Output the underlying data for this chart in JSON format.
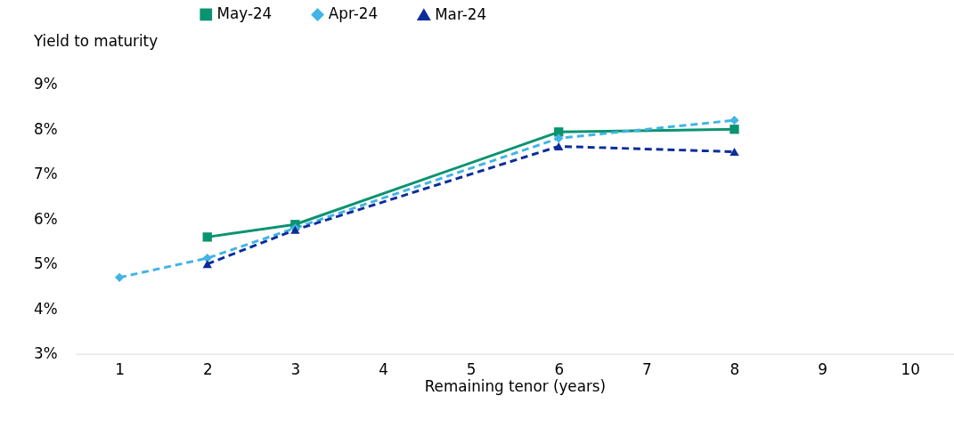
{
  "chart_data": {
    "type": "line",
    "xlabel": "Remaining tenor (years)",
    "ylabel": "Yield to maturity",
    "xlim": [
      0.5,
      10.5
    ],
    "xticks": [
      1,
      2,
      3,
      4,
      5,
      6,
      7,
      8,
      9,
      10
    ],
    "ylim": [
      3,
      9
    ],
    "yticks": [
      {
        "value": 3,
        "label": "3%"
      },
      {
        "value": 4,
        "label": "4%"
      },
      {
        "value": 5,
        "label": "5%"
      },
      {
        "value": 6,
        "label": "6%"
      },
      {
        "value": 7,
        "label": "7%"
      },
      {
        "value": 8,
        "label": "8%"
      },
      {
        "value": 9,
        "label": "9%"
      }
    ],
    "legend": "top",
    "grid": false,
    "series": [
      {
        "name": "May-24",
        "color": "#0a9370",
        "marker": "square",
        "line_style": "solid",
        "x": [
          2,
          3,
          6,
          8
        ],
        "values": [
          5.6,
          5.88,
          7.94,
          8.0
        ]
      },
      {
        "name": "Apr-24",
        "color": "#42b4e6",
        "marker": "diamond",
        "line_style": "dashed",
        "x": [
          1,
          2,
          3,
          6,
          8
        ],
        "values": [
          4.7,
          5.13,
          5.8,
          7.8,
          8.2
        ]
      },
      {
        "name": "Mar-24",
        "color": "#0b2d9a",
        "marker": "triangle",
        "line_style": "dashed",
        "x": [
          2,
          3,
          6,
          8
        ],
        "values": [
          5.0,
          5.76,
          7.62,
          7.5
        ]
      }
    ]
  }
}
